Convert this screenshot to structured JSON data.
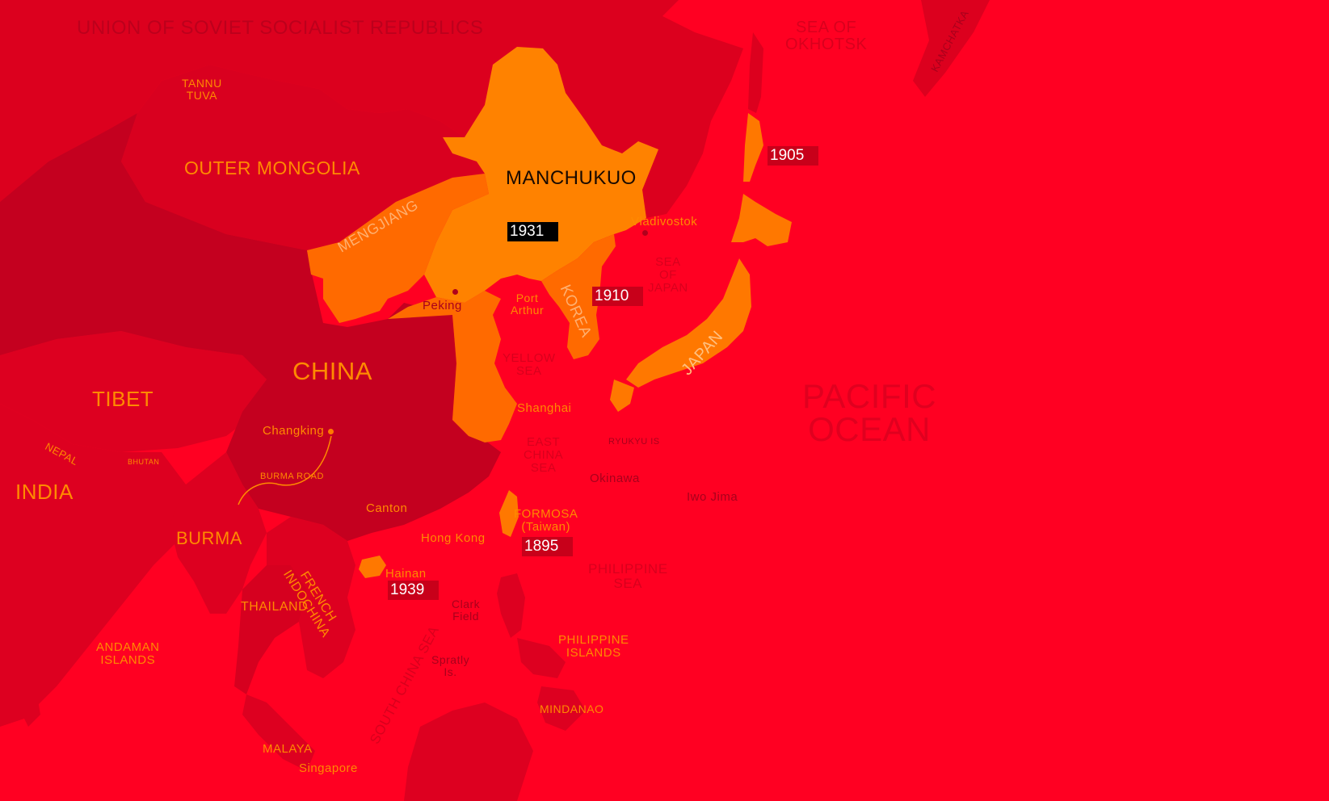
{
  "colors": {
    "ocean": "#ff0022",
    "ussr": "#dc001e",
    "china": "#c4001f",
    "neighbors": "#dd0020",
    "manchukuo": "#ff8200",
    "occupied": "#ff6a00",
    "japan": "#ff7800",
    "badge_dark": "#000000",
    "badge_red": "#c8001a",
    "label_orange": "#ff8a00",
    "label_dark": "#a8001c",
    "label_sea": "#d8001d"
  },
  "regions": {
    "ussr": "UNION OF SOVIET SOCIALIST REPUBLICS",
    "tannu_tuva": "TANNU\nTUVA",
    "outer_mongolia": "OUTER MONGOLIA",
    "manchukuo": "MANCHUKUO",
    "mengjiang": "MENGJIANG",
    "china": "CHINA",
    "tibet": "TIBET",
    "nepal": "NEPAL",
    "bhutan": "BHUTAN",
    "india": "INDIA",
    "burma": "BURMA",
    "thailand": "THAILAND",
    "french_indochina": "FRENCH\nINDOCHINA",
    "korea": "KOREA",
    "japan": "JAPAN",
    "kamchatka": "KAMCHATKA",
    "formosa": "FORMOSA\n(Taiwan)",
    "philippine_islands": "PHILIPPINE\nISLANDS",
    "mindanao": "MINDANAO",
    "andaman": "ANDAMAN\nISLANDS",
    "malaya": "MALAYA"
  },
  "seas": {
    "okhotsk": "SEA OF\nOKHOTSK",
    "japan_sea": "SEA\nOF\nJAPAN",
    "yellow_sea": "YELLOW\nSEA",
    "east_china_sea": "EAST\nCHINA\nSEA",
    "philippine_sea": "PHILIPPINE\nSEA",
    "south_china_sea": "SOUTH CHINA SEA",
    "pacific": "PACIFIC\nOCEAN"
  },
  "places": {
    "vladivostok": "Vladivostok",
    "peking": "Peking",
    "port_arthur": "Port\nArthur",
    "shanghai": "Shanghai",
    "changking": "Changking",
    "burma_road": "BURMA ROAD",
    "canton": "Canton",
    "hong_kong": "Hong Kong",
    "hainan": "Hainan",
    "ryukyu": "RYUKYU IS",
    "okinawa": "Okinawa",
    "iwo_jima": "Iwo Jima",
    "clark_field": "Clark\nField",
    "spratly": "Spratly\nIs.",
    "singapore": "Singapore"
  },
  "years": {
    "manchukuo": "1931",
    "sakhalin": "1905",
    "korea": "1910",
    "formosa": "1895",
    "hainan": "1939"
  }
}
